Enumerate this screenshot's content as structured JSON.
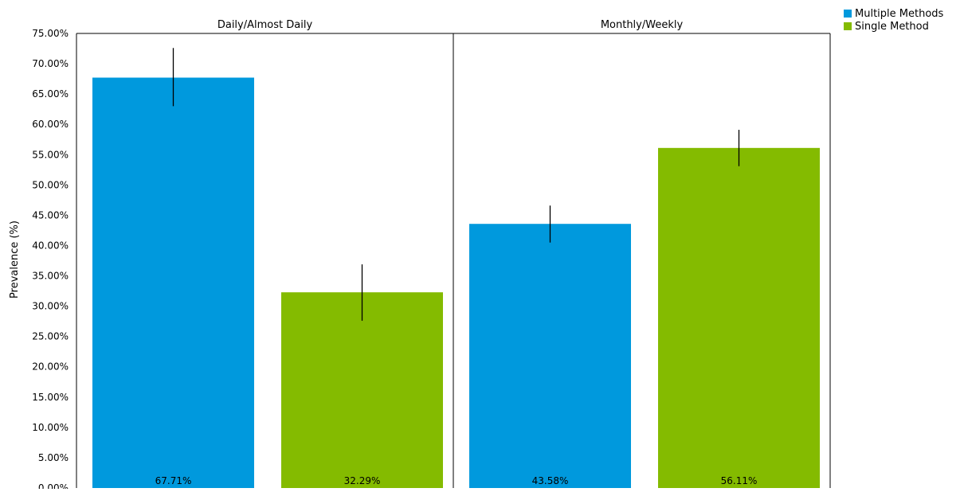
{
  "chart_data": {
    "type": "bar",
    "ylabel": "Prevalence (%)",
    "ylim": [
      0,
      75
    ],
    "yticks": [
      "0.00%",
      "5.00%",
      "10.00%",
      "15.00%",
      "20.00%",
      "25.00%",
      "30.00%",
      "35.00%",
      "40.00%",
      "45.00%",
      "50.00%",
      "55.00%",
      "60.00%",
      "65.00%",
      "70.00%",
      "75.00%"
    ],
    "grid": false,
    "legend_position": "top-right",
    "series_colors": {
      "Multiple Methods": "#0099dd",
      "Single Method": "#84bb00"
    },
    "legend": [
      {
        "name": "Multiple Methods",
        "color": "#0099dd"
      },
      {
        "name": "Single Method",
        "color": "#84bb00"
      }
    ],
    "panels": [
      {
        "title": "Daily/Almost Daily",
        "bars": [
          {
            "series": "Multiple Methods",
            "value": 67.71,
            "label": "67.71%",
            "error_low": 63.0,
            "error_high": 72.6
          },
          {
            "series": "Single Method",
            "value": 32.29,
            "label": "32.29%",
            "error_low": 27.6,
            "error_high": 36.9
          }
        ]
      },
      {
        "title": "Monthly/Weekly",
        "bars": [
          {
            "series": "Multiple Methods",
            "value": 43.58,
            "label": "43.58%",
            "error_low": 40.5,
            "error_high": 46.6
          },
          {
            "series": "Single Method",
            "value": 56.11,
            "label": "56.11%",
            "error_low": 53.1,
            "error_high": 59.1
          }
        ]
      }
    ]
  }
}
